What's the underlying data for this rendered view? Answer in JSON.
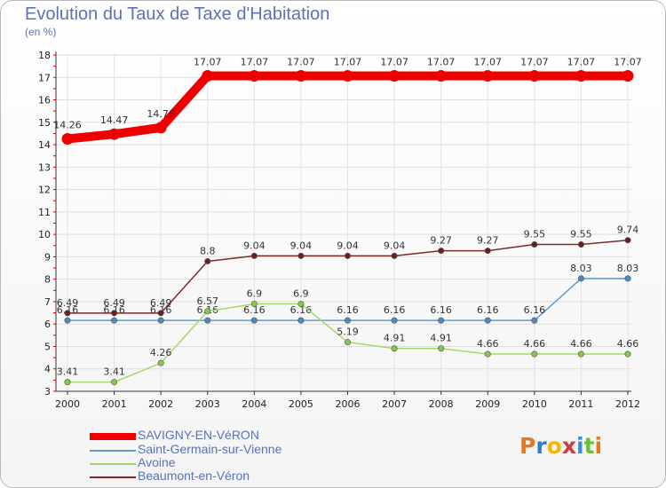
{
  "title": "Evolution du Taux de Taxe d'Habitation",
  "subtitle": "(en %)",
  "brand": {
    "letters": [
      "P",
      "r",
      "o",
      "x",
      "i",
      "t",
      "i"
    ],
    "colors": [
      "#e87722",
      "#2e7fc1",
      "#f2b705",
      "#d03b3b",
      "#3b8fd0",
      "#6bbf3a",
      "#e87722"
    ]
  },
  "chart_data": {
    "type": "line",
    "title": "Evolution du Taux de Taxe d'Habitation",
    "ylabel": "(en %)",
    "xlabel": "",
    "ylim": [
      3,
      18
    ],
    "yticks": [
      3,
      4,
      5,
      6,
      7,
      8,
      9,
      10,
      11,
      12,
      13,
      14,
      15,
      16,
      17,
      18
    ],
    "categories": [
      "2000",
      "2001",
      "2002",
      "2003",
      "2004",
      "2005",
      "2006",
      "2007",
      "2008",
      "2009",
      "2010",
      "2011",
      "2012"
    ],
    "series": [
      {
        "name": "Saint-Germain-sur-Vienne",
        "color": "#5b9bd5",
        "dot": "#4a8ac6",
        "values": [
          6.16,
          6.16,
          6.16,
          6.16,
          6.16,
          6.16,
          6.16,
          6.16,
          6.16,
          6.16,
          6.16,
          8.03,
          8.03
        ]
      },
      {
        "name": "Avoine",
        "color": "#a4d86e",
        "dot": "#84c94a",
        "values": [
          3.41,
          3.41,
          4.26,
          6.57,
          6.9,
          6.9,
          5.19,
          4.91,
          4.91,
          4.66,
          4.66,
          4.66,
          4.66
        ]
      },
      {
        "name": "Beaumont-en-Véron",
        "color": "#7b2b2b",
        "dot": "#6b2020",
        "values": [
          6.49,
          6.49,
          6.49,
          8.8,
          9.04,
          9.04,
          9.04,
          9.04,
          9.27,
          9.27,
          9.55,
          9.55,
          9.74
        ]
      },
      {
        "name": "SAVIGNY-EN-VéRON",
        "color": "#ee0000",
        "dot": "#ee0000",
        "values": [
          14.26,
          14.47,
          14.76,
          17.07,
          17.07,
          17.07,
          17.07,
          17.07,
          17.07,
          17.07,
          17.07,
          17.07,
          17.07
        ]
      }
    ],
    "legend": {
      "position": "bottom-left",
      "entries": [
        "SAVIGNY-EN-VéRON",
        "Saint-Germain-sur-Vienne",
        "Avoine",
        "Beaumont-en-Véron"
      ]
    }
  }
}
